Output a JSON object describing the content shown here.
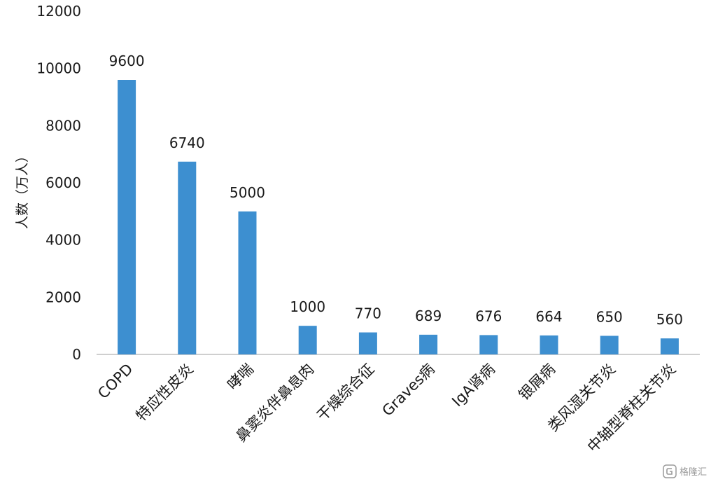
{
  "chart_data": {
    "type": "bar",
    "categories": [
      "COPD",
      "特应性皮炎",
      "哮喘",
      "鼻窦炎伴鼻息肉",
      "干燥综合征",
      "Graves病",
      "IgA肾病",
      "银屑病",
      "类风湿关节炎",
      "中轴型脊柱关节炎"
    ],
    "values": [
      9600,
      6740,
      5000,
      1000,
      770,
      689,
      676,
      664,
      650,
      560
    ],
    "data_labels": [
      "9600",
      "6740",
      "5000",
      "1000",
      "770",
      "689",
      "676",
      "664",
      "650",
      "560"
    ],
    "ylabel": "人数（万人）",
    "ylim": [
      0,
      12000
    ],
    "yticks": [
      "0",
      "2000",
      "4000",
      "6000",
      "8000",
      "10000",
      "12000"
    ],
    "bar_color": "#3d8fd0",
    "grid": false,
    "legend": "none"
  },
  "watermark": {
    "icon": "gelonghui-logo-icon",
    "text": "格隆汇"
  }
}
